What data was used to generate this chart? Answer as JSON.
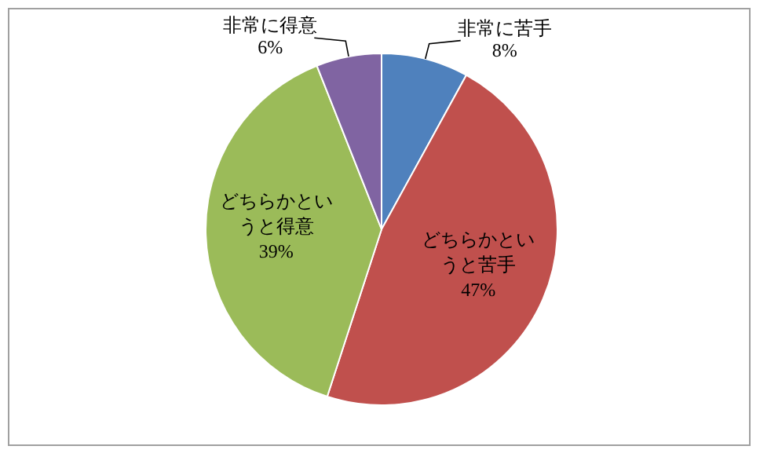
{
  "chart_data": {
    "type": "pie",
    "categories": [
      "非常に苦手",
      "どちらかというと苦手",
      "どちらかというと得意",
      "非常に得意"
    ],
    "values": [
      8,
      47,
      39,
      6
    ],
    "value_labels": [
      "8%",
      "47%",
      "39%",
      "6%"
    ],
    "colors": [
      "#4f81bd",
      "#c0504d",
      "#9bbb59",
      "#8064a2"
    ]
  }
}
